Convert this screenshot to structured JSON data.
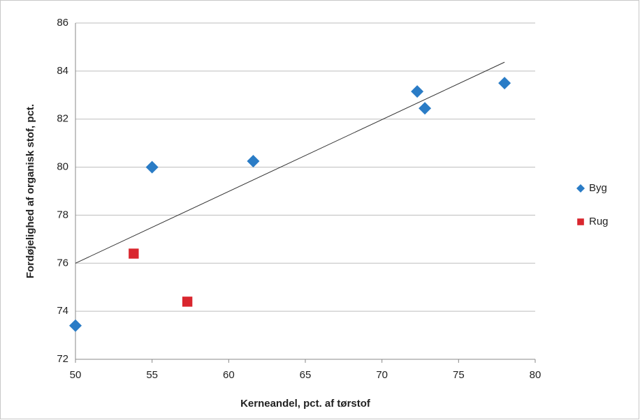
{
  "chart_data": {
    "type": "scatter",
    "x_label": "Kerneandel, pct. af tørstof",
    "y_label": "Fordøjelighed af organisk stof, pct.",
    "series": [
      {
        "name": "Byg",
        "color": "#2a7cc6",
        "marker": "diamond",
        "x": [
          50.0,
          55.0,
          61.6,
          72.3,
          72.8,
          78.0
        ],
        "values": [
          73.4,
          80.0,
          80.25,
          83.15,
          82.45,
          83.5
        ]
      },
      {
        "name": "Rug",
        "color": "#d9262e",
        "marker": "square",
        "x": [
          53.8,
          57.3
        ],
        "values": [
          76.4,
          74.4
        ]
      }
    ],
    "trendline": {
      "x": [
        50,
        78
      ],
      "values": [
        76.0,
        84.37
      ],
      "color": "#333333"
    },
    "xlim": [
      50,
      80
    ],
    "xticks": [
      50,
      55,
      60,
      65,
      70,
      75,
      80
    ],
    "ylim": [
      72,
      86
    ],
    "yticks": [
      72,
      74,
      76,
      78,
      80,
      82,
      84,
      86
    ],
    "grid": true,
    "legend": "right"
  }
}
